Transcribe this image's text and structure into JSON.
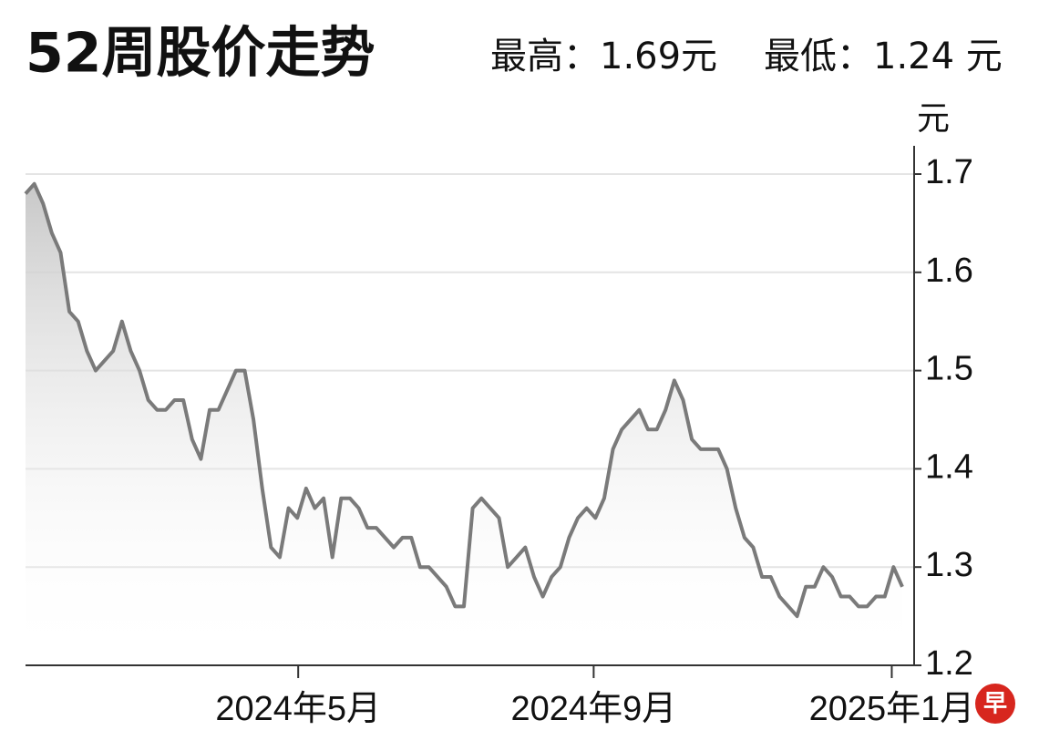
{
  "chart_data": {
    "type": "line",
    "title": "52周股价走势",
    "high_label": "最高：1.69元",
    "low_label": "最低：1.24 元",
    "y_axis_label": "元",
    "logo": "早",
    "color": "#7a7a7a",
    "grid": true,
    "ylim": [
      1.2,
      1.7
    ],
    "yticks": [
      1.2,
      1.3,
      1.4,
      1.5,
      1.6,
      1.7
    ],
    "xlim": [
      0,
      100
    ],
    "xticks": [
      {
        "value": 31.1,
        "label": "2024年5月"
      },
      {
        "value": 64.8,
        "label": "2024年9月"
      },
      {
        "value": 98.8,
        "label": "2025年1月"
      }
    ],
    "values": [
      1.68,
      1.69,
      1.67,
      1.64,
      1.62,
      1.56,
      1.55,
      1.52,
      1.5,
      1.51,
      1.52,
      1.55,
      1.52,
      1.5,
      1.47,
      1.46,
      1.46,
      1.47,
      1.47,
      1.43,
      1.41,
      1.46,
      1.46,
      1.48,
      1.5,
      1.5,
      1.45,
      1.38,
      1.32,
      1.31,
      1.36,
      1.35,
      1.38,
      1.36,
      1.37,
      1.31,
      1.37,
      1.37,
      1.36,
      1.34,
      1.34,
      1.33,
      1.32,
      1.33,
      1.33,
      1.3,
      1.3,
      1.29,
      1.28,
      1.26,
      1.26,
      1.36,
      1.37,
      1.36,
      1.35,
      1.3,
      1.31,
      1.32,
      1.29,
      1.27,
      1.29,
      1.3,
      1.33,
      1.35,
      1.36,
      1.35,
      1.37,
      1.42,
      1.44,
      1.45,
      1.46,
      1.44,
      1.44,
      1.46,
      1.49,
      1.47,
      1.43,
      1.42,
      1.42,
      1.42,
      1.4,
      1.36,
      1.33,
      1.32,
      1.29,
      1.29,
      1.27,
      1.26,
      1.25,
      1.28,
      1.28,
      1.3,
      1.29,
      1.27,
      1.27,
      1.26,
      1.26,
      1.27,
      1.27,
      1.3,
      1.28
    ]
  }
}
